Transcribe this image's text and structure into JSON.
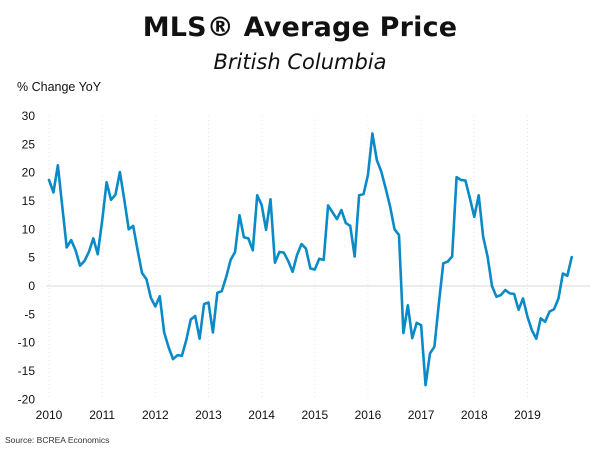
{
  "chart_data": {
    "type": "line",
    "title": "MLS® Average Price",
    "subtitle": "British Columbia",
    "ylabel": "% Change YoY",
    "xlabel": "",
    "source": "Source: BCREA Economics",
    "ylim": [
      -20,
      30
    ],
    "yticks": [
      30,
      25,
      20,
      15,
      10,
      5,
      0,
      -5,
      -10,
      -15,
      -20
    ],
    "xticks": [
      "2010",
      "2011",
      "2012",
      "2013",
      "2014",
      "2015",
      "2016",
      "2017",
      "2018",
      "2019"
    ],
    "x_start": "2010-01",
    "x_frequency": "monthly",
    "grid": "zero line and faint vertical dotted year lines",
    "line_color": "#0A8AC6",
    "series": [
      {
        "name": "MLS® Average Price % Change YoY",
        "values": [
          18.7,
          16.5,
          21.3,
          14.0,
          6.8,
          8.1,
          6.3,
          3.6,
          4.4,
          6.0,
          8.4,
          5.6,
          11.5,
          18.3,
          15.2,
          16.1,
          20.1,
          15.2,
          10.0,
          10.6,
          6.3,
          2.3,
          1.2,
          -2.1,
          -3.6,
          -1.8,
          -8.2,
          -10.8,
          -12.9,
          -12.2,
          -12.3,
          -9.5,
          -5.9,
          -5.3,
          -9.3,
          -3.2,
          -2.9,
          -8.2,
          -1.2,
          -0.9,
          1.6,
          4.6,
          6.0,
          12.5,
          8.6,
          8.4,
          6.3,
          16.0,
          14.3,
          9.9,
          15.3,
          4.1,
          6.0,
          5.9,
          4.4,
          2.5,
          5.5,
          7.4,
          6.6,
          3.1,
          2.9,
          4.8,
          4.6,
          14.2,
          13.0,
          11.8,
          13.4,
          11.1,
          10.6,
          5.2,
          16.0,
          16.2,
          19.6,
          26.9,
          22.2,
          20.2,
          17.2,
          14.0,
          10.0,
          9.0,
          -8.3,
          -3.4,
          -9.2,
          -6.5,
          -6.9,
          -17.5,
          -11.9,
          -10.7,
          -3.1,
          4.0,
          4.3,
          5.2,
          19.2,
          18.7,
          18.6,
          15.5,
          12.2,
          16.0,
          8.7,
          5.2,
          0.0,
          -1.9,
          -1.6,
          -0.7,
          -1.3,
          -1.4,
          -4.2,
          -2.2,
          -5.4,
          -7.8,
          -9.3,
          -5.7,
          -6.3,
          -4.5,
          -4.1,
          -2.2,
          2.2,
          1.8,
          5.1
        ]
      }
    ]
  }
}
